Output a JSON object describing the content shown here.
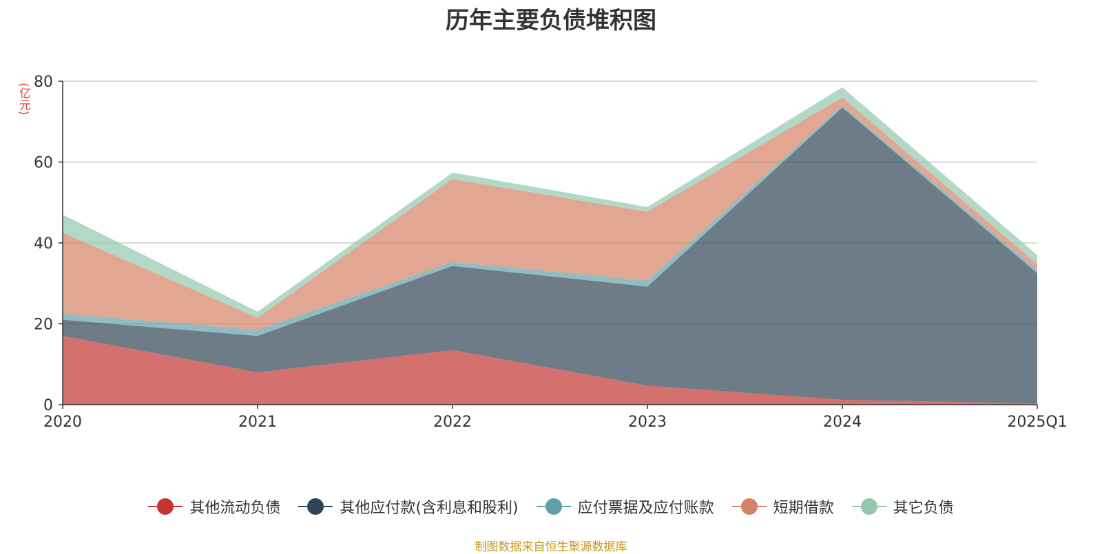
{
  "chart_data": {
    "type": "area",
    "stacked": true,
    "title": "历年主要负债堆积图",
    "ylabel": "(亿元)",
    "categories": [
      "2020",
      "2021",
      "2022",
      "2023",
      "2024",
      "2025Q1"
    ],
    "ylim": [
      0,
      80
    ],
    "yticks": [
      0,
      20,
      40,
      60,
      80
    ],
    "grid": true,
    "legend_position": "bottom",
    "series": [
      {
        "name": "其他流动负债",
        "color": "#c23531",
        "values": [
          17.0,
          8.0,
          13.5,
          4.7,
          1.2,
          0.3
        ]
      },
      {
        "name": "其他应付款(含利息和股利)",
        "color": "#2f4554",
        "values": [
          4.0,
          9.0,
          20.8,
          24.5,
          72.3,
          32.2
        ]
      },
      {
        "name": "应付票据及应付账款",
        "color": "#61a0a8",
        "values": [
          1.5,
          1.5,
          1.0,
          1.5,
          0.5,
          0.8
        ]
      },
      {
        "name": "短期借款",
        "color": "#d48265",
        "values": [
          20.0,
          3.0,
          20.5,
          17.0,
          2.0,
          1.5
        ]
      },
      {
        "name": "其它负债",
        "color": "#91c7ae",
        "values": [
          4.5,
          1.5,
          1.6,
          1.2,
          2.5,
          2.2
        ]
      }
    ]
  },
  "source_note": "制图数据来自恒生聚源数据库"
}
